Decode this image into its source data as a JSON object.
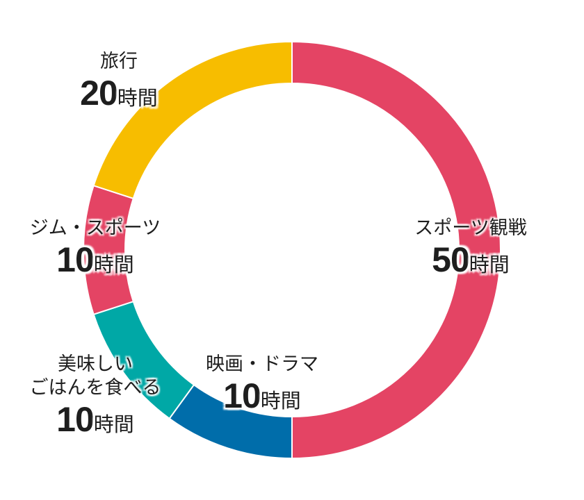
{
  "chart_data": {
    "type": "pie",
    "subtype": "donut",
    "title": "",
    "unit": "時間",
    "slices": [
      {
        "label": "スポーツ観戦",
        "value": 50,
        "color": "#E44464"
      },
      {
        "label": "映画・ドラマ",
        "value": 10,
        "color": "#006DAA"
      },
      {
        "label": "美味しいごはんを食べる",
        "value": 10,
        "color": "#00A8A6"
      },
      {
        "label": "ジム・スポーツ",
        "value": 10,
        "color": "#E44464"
      },
      {
        "label": "旅行",
        "value": 20,
        "color": "#F7BD00"
      }
    ],
    "start_angle_deg": 0,
    "direction": "clockwise",
    "total": 100
  },
  "labels": {
    "sports_watch": {
      "name": "スポーツ観戦",
      "value": "50",
      "unit": "時間"
    },
    "movie": {
      "name": "映画・ドラマ",
      "value": "10",
      "unit": "時間"
    },
    "food": {
      "name_line1": "美味しい",
      "name_line2": "ごはんを食べる",
      "value": "10",
      "unit": "時間"
    },
    "gym": {
      "name": "ジム・スポーツ",
      "value": "10",
      "unit": "時間"
    },
    "travel": {
      "name": "旅行",
      "value": "20",
      "unit": "時間"
    }
  }
}
